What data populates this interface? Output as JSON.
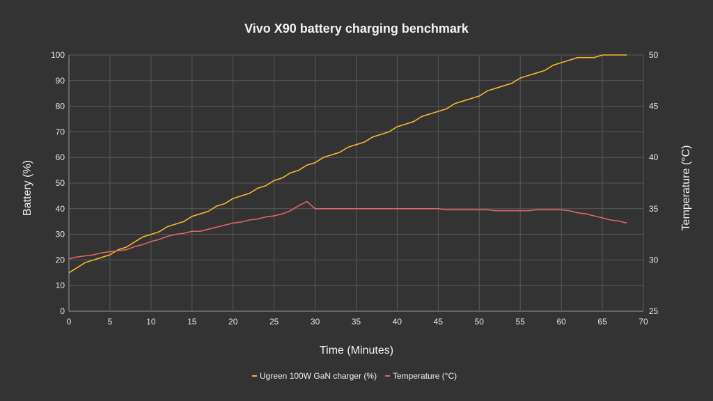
{
  "chart_data": {
    "type": "line",
    "title": "Vivo X90 battery charging benchmark",
    "xlabel": "Time (Minutes)",
    "ylabel": "Battery (%)",
    "y2label": "Temperature (°C)",
    "xlim": [
      0,
      70
    ],
    "ylim": [
      0,
      100
    ],
    "y2lim": [
      25,
      50
    ],
    "xticks": [
      0,
      5,
      10,
      15,
      20,
      25,
      30,
      35,
      40,
      45,
      50,
      55,
      60,
      65,
      70
    ],
    "yticks": [
      0,
      10,
      20,
      30,
      40,
      50,
      60,
      70,
      80,
      90,
      100
    ],
    "y2ticks": [
      25,
      30,
      35,
      40,
      45,
      50
    ],
    "grid": true,
    "legend_position": "bottom",
    "series": [
      {
        "name": "Ugreen 100W GaN charger (%)",
        "axis": "left",
        "color": "#f5b82e",
        "x": [
          0,
          1,
          2,
          3,
          4,
          5,
          6,
          7,
          8,
          9,
          10,
          11,
          12,
          13,
          14,
          15,
          16,
          17,
          18,
          19,
          20,
          21,
          22,
          23,
          24,
          25,
          26,
          27,
          28,
          29,
          30,
          31,
          32,
          33,
          34,
          35,
          36,
          37,
          38,
          39,
          40,
          41,
          42,
          43,
          44,
          45,
          46,
          47,
          48,
          49,
          50,
          51,
          52,
          53,
          54,
          55,
          56,
          57,
          58,
          59,
          60,
          61,
          62,
          63,
          64,
          65,
          66,
          67,
          68
        ],
        "y": [
          15,
          17,
          19,
          20,
          21,
          22,
          24,
          25,
          27,
          29,
          30,
          31,
          33,
          34,
          35,
          37,
          38,
          39,
          41,
          42,
          44,
          45,
          46,
          48,
          49,
          51,
          52,
          54,
          55,
          57,
          58,
          60,
          61,
          62,
          64,
          65,
          66,
          68,
          69,
          70,
          72,
          73,
          74,
          76,
          77,
          78,
          79,
          81,
          82,
          83,
          84,
          86,
          87,
          88,
          89,
          91,
          92,
          93,
          94,
          96,
          97,
          98,
          99,
          99,
          99,
          100,
          100,
          100,
          100
        ]
      },
      {
        "name": "Temperature (°C)",
        "axis": "right",
        "color": "#e06666",
        "x": [
          0,
          1,
          2,
          3,
          4,
          5,
          6,
          7,
          8,
          9,
          10,
          11,
          12,
          13,
          14,
          15,
          16,
          17,
          18,
          19,
          20,
          21,
          22,
          23,
          24,
          25,
          26,
          27,
          28,
          29,
          30,
          31,
          32,
          33,
          34,
          35,
          36,
          37,
          38,
          39,
          40,
          41,
          42,
          43,
          44,
          45,
          46,
          47,
          48,
          49,
          50,
          51,
          52,
          53,
          54,
          55,
          56,
          57,
          58,
          59,
          60,
          61,
          62,
          63,
          64,
          65,
          66,
          67,
          68
        ],
        "y": [
          30.1,
          30.3,
          30.4,
          30.5,
          30.7,
          30.8,
          30.9,
          31.0,
          31.3,
          31.5,
          31.8,
          32.0,
          32.3,
          32.5,
          32.6,
          32.8,
          32.8,
          33.0,
          33.2,
          33.4,
          33.6,
          33.7,
          33.9,
          34.0,
          34.2,
          34.3,
          34.5,
          34.8,
          35.3,
          35.7,
          35.0,
          35.0,
          35.0,
          35.0,
          35.0,
          35.0,
          35.0,
          35.0,
          35.0,
          35.0,
          35.0,
          35.0,
          35.0,
          35.0,
          35.0,
          35.0,
          34.9,
          34.9,
          34.9,
          34.9,
          34.9,
          34.9,
          34.8,
          34.8,
          34.8,
          34.8,
          34.8,
          34.9,
          34.9,
          34.9,
          34.9,
          34.8,
          34.6,
          34.5,
          34.3,
          34.1,
          33.9,
          33.8,
          33.6
        ]
      }
    ]
  }
}
